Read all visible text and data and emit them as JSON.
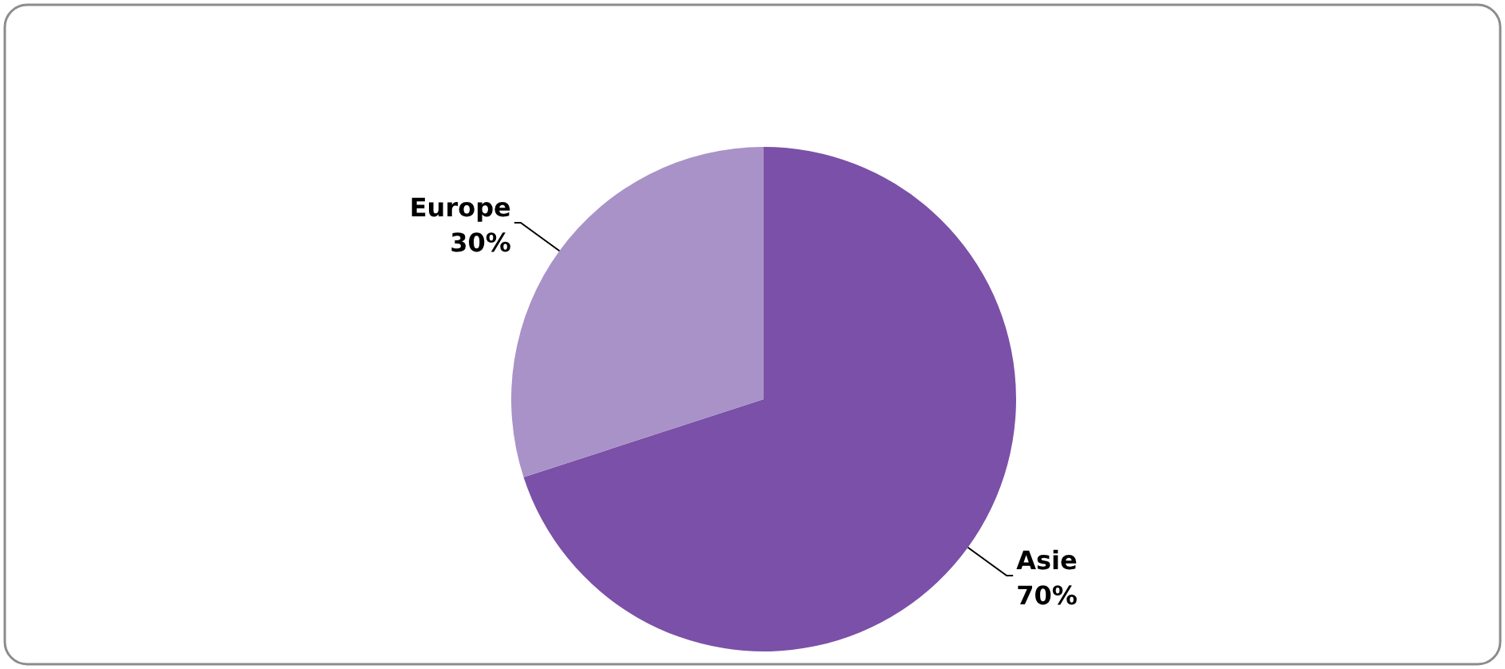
{
  "chart_data": {
    "type": "pie",
    "categories": [
      "Asie",
      "Europe"
    ],
    "values": [
      70,
      30
    ],
    "colors": [
      "#7b50a8",
      "#a892c8"
    ],
    "value_labels": [
      "70%",
      "30%"
    ]
  }
}
